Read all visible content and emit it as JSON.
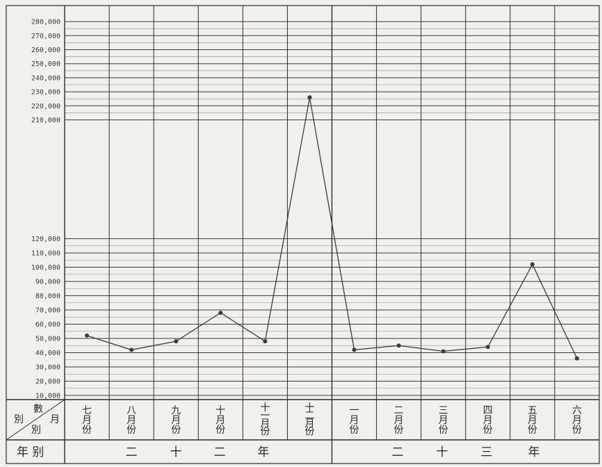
{
  "chart_data": {
    "type": "line",
    "categories": [
      "七月份",
      "八月份",
      "九月份",
      "十月份",
      "十一月份",
      "十二月份",
      "一月份",
      "二月份",
      "三月份",
      "四月份",
      "五月份",
      "六月份"
    ],
    "values": [
      52000,
      42000,
      48000,
      68000,
      48000,
      226000,
      42000,
      45000,
      41000,
      44000,
      102000,
      36000
    ],
    "yticks_low": [
      "10,000",
      "20,000",
      "30,000",
      "40,000",
      "50,000",
      "60,000",
      "70,000",
      "80,000",
      "90,000",
      "100,000",
      "110,000",
      "120,000"
    ],
    "yticks_high": [
      "210,000",
      "220,000",
      "230,000",
      "240,000",
      "250,000",
      "260,000",
      "270,000",
      "280,000"
    ],
    "ylim_low": [
      10000,
      120000
    ],
    "ylim_high": [
      210000,
      280000
    ],
    "scale_break": true,
    "grid": true,
    "row_header": {
      "count_label": "數",
      "month_label": "月",
      "row_label": "別",
      "row_label2": "別"
    },
    "year_row": {
      "label": "年 别",
      "groups": [
        {
          "chars": [
            "二",
            "十",
            "二",
            "年"
          ]
        },
        {
          "chars": [
            "二",
            "十",
            "三",
            "年"
          ]
        }
      ]
    }
  }
}
